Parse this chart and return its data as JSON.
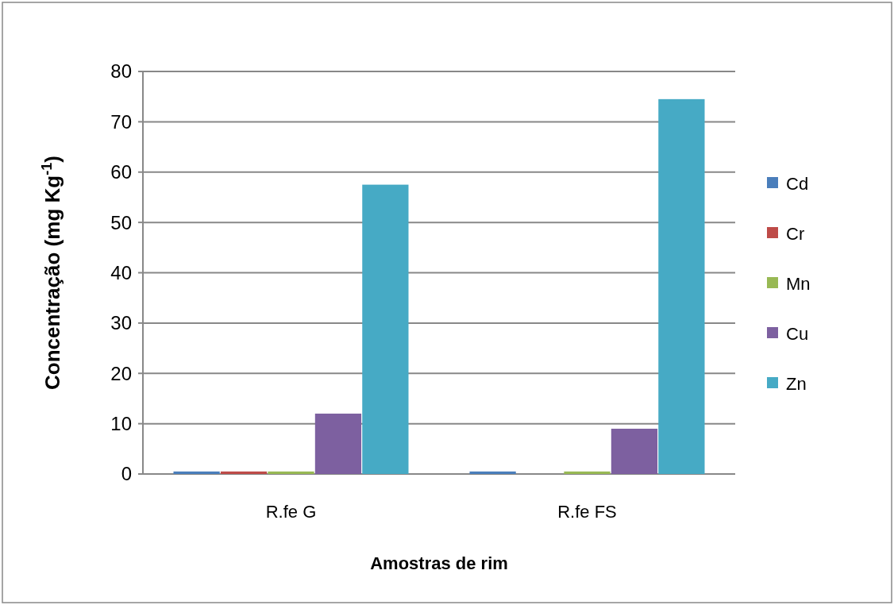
{
  "chart_data": {
    "type": "bar",
    "xlabel": "Amostras de rim",
    "ylabel": "Concentração  (mg Kg$^{-1}$)",
    "categories": [
      "R.fe G",
      "R.fe FS"
    ],
    "series": [
      {
        "name": "Cd",
        "color": "#4a7ebb",
        "values": [
          0.5,
          0.5
        ]
      },
      {
        "name": "Cr",
        "color": "#be4b48",
        "values": [
          0.5,
          null
        ]
      },
      {
        "name": "Mn",
        "color": "#98b954",
        "values": [
          0.5,
          0.5
        ]
      },
      {
        "name": "Cu",
        "color": "#7d60a0",
        "values": [
          12,
          9
        ]
      },
      {
        "name": "Zn",
        "color": "#46aac5",
        "values": [
          57.5,
          74.5
        ]
      }
    ],
    "ylim": [
      0,
      80
    ],
    "yticks": [
      0,
      10,
      20,
      30,
      40,
      50,
      60,
      70,
      80
    ],
    "grid": "y",
    "legend": "right"
  }
}
